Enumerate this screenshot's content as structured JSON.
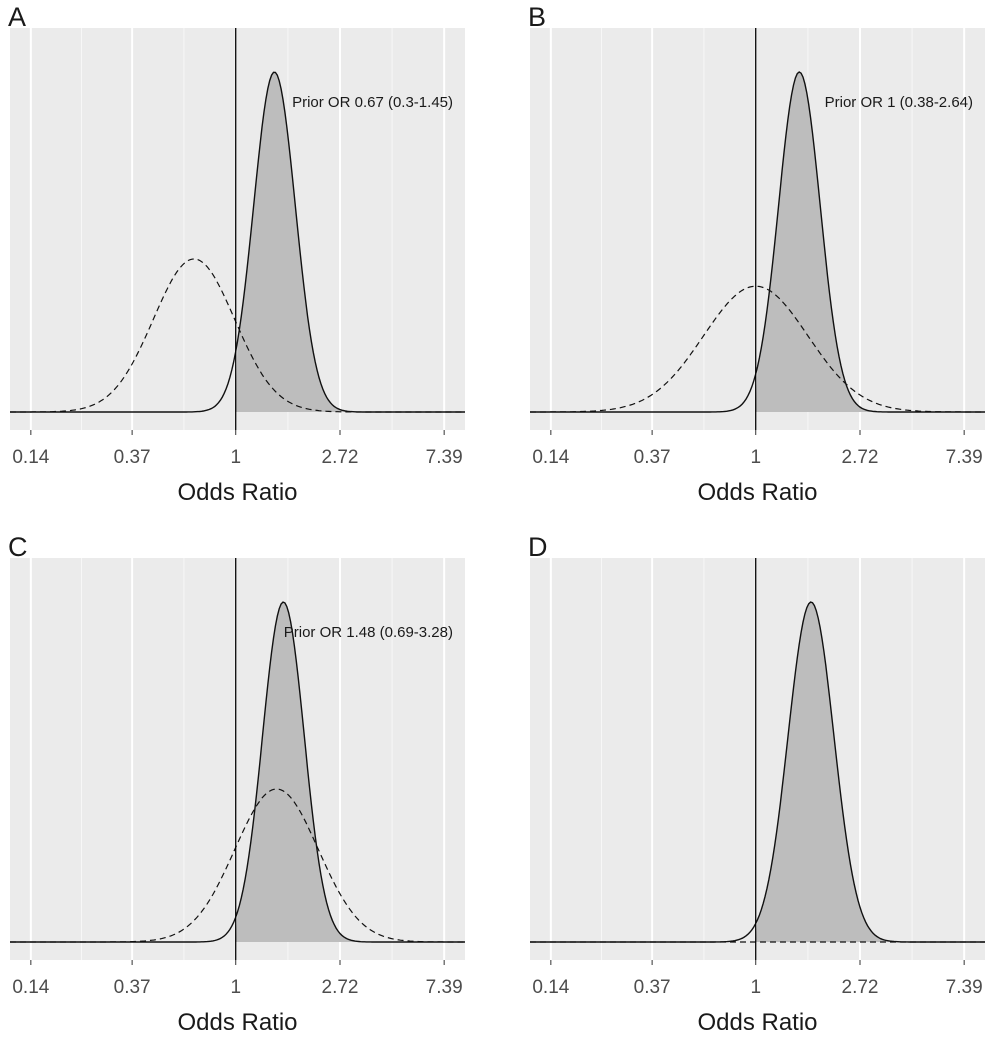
{
  "chart_data": [
    {
      "panel": "A",
      "type": "area",
      "xscale": "log",
      "xlabel": "Odds Ratio",
      "x_ticks": [
        0.14,
        0.37,
        1,
        2.72,
        7.39
      ],
      "x_tick_labels": [
        "0.14",
        "0.37",
        "1",
        "2.72",
        "7.39"
      ],
      "reference_line_x": 1,
      "annotation": "Prior OR 0.67 (0.3-1.45)",
      "series": [
        {
          "style": "solid-filled",
          "mean_or": 1.45,
          "sd_log": 0.2,
          "peak_relative": 1.0
        },
        {
          "style": "dashed",
          "mean_or": 0.67,
          "sd_log": 0.39,
          "peak_relative": 0.45
        }
      ]
    },
    {
      "panel": "B",
      "type": "area",
      "xscale": "log",
      "xlabel": "Odds Ratio",
      "x_ticks": [
        0.14,
        0.37,
        1,
        2.72,
        7.39
      ],
      "x_tick_labels": [
        "0.14",
        "0.37",
        "1",
        "2.72",
        "7.39"
      ],
      "reference_line_x": 1,
      "annotation": "Prior OR 1 (0.38-2.64)",
      "series": [
        {
          "style": "solid-filled",
          "mean_or": 1.52,
          "sd_log": 0.2,
          "peak_relative": 1.0
        },
        {
          "style": "dashed",
          "mean_or": 1.0,
          "sd_log": 0.5,
          "peak_relative": 0.37
        }
      ]
    },
    {
      "panel": "C",
      "type": "area",
      "xscale": "log",
      "xlabel": "Odds Ratio",
      "x_ticks": [
        0.14,
        0.37,
        1,
        2.72,
        7.39
      ],
      "x_tick_labels": [
        "0.14",
        "0.37",
        "1",
        "2.72",
        "7.39"
      ],
      "reference_line_x": 1,
      "annotation": "Prior OR 1.48 (0.69-3.28)",
      "series": [
        {
          "style": "solid-filled",
          "mean_or": 1.58,
          "sd_log": 0.2,
          "peak_relative": 1.0
        },
        {
          "style": "dashed",
          "mean_or": 1.48,
          "sd_log": 0.4,
          "peak_relative": 0.45
        }
      ]
    },
    {
      "panel": "D",
      "type": "area",
      "xscale": "log",
      "xlabel": "Odds Ratio",
      "x_ticks": [
        0.14,
        0.37,
        1,
        2.72,
        7.39
      ],
      "x_tick_labels": [
        "0.14",
        "0.37",
        "1",
        "2.72",
        "7.39"
      ],
      "reference_line_x": 1,
      "annotation": "",
      "series": [
        {
          "style": "solid-filled",
          "mean_or": 1.7,
          "sd_log": 0.22,
          "peak_relative": 1.0
        },
        {
          "style": "dashed",
          "mean_or": 1.0,
          "sd_log": 20,
          "peak_relative": 0.0
        }
      ]
    }
  ]
}
